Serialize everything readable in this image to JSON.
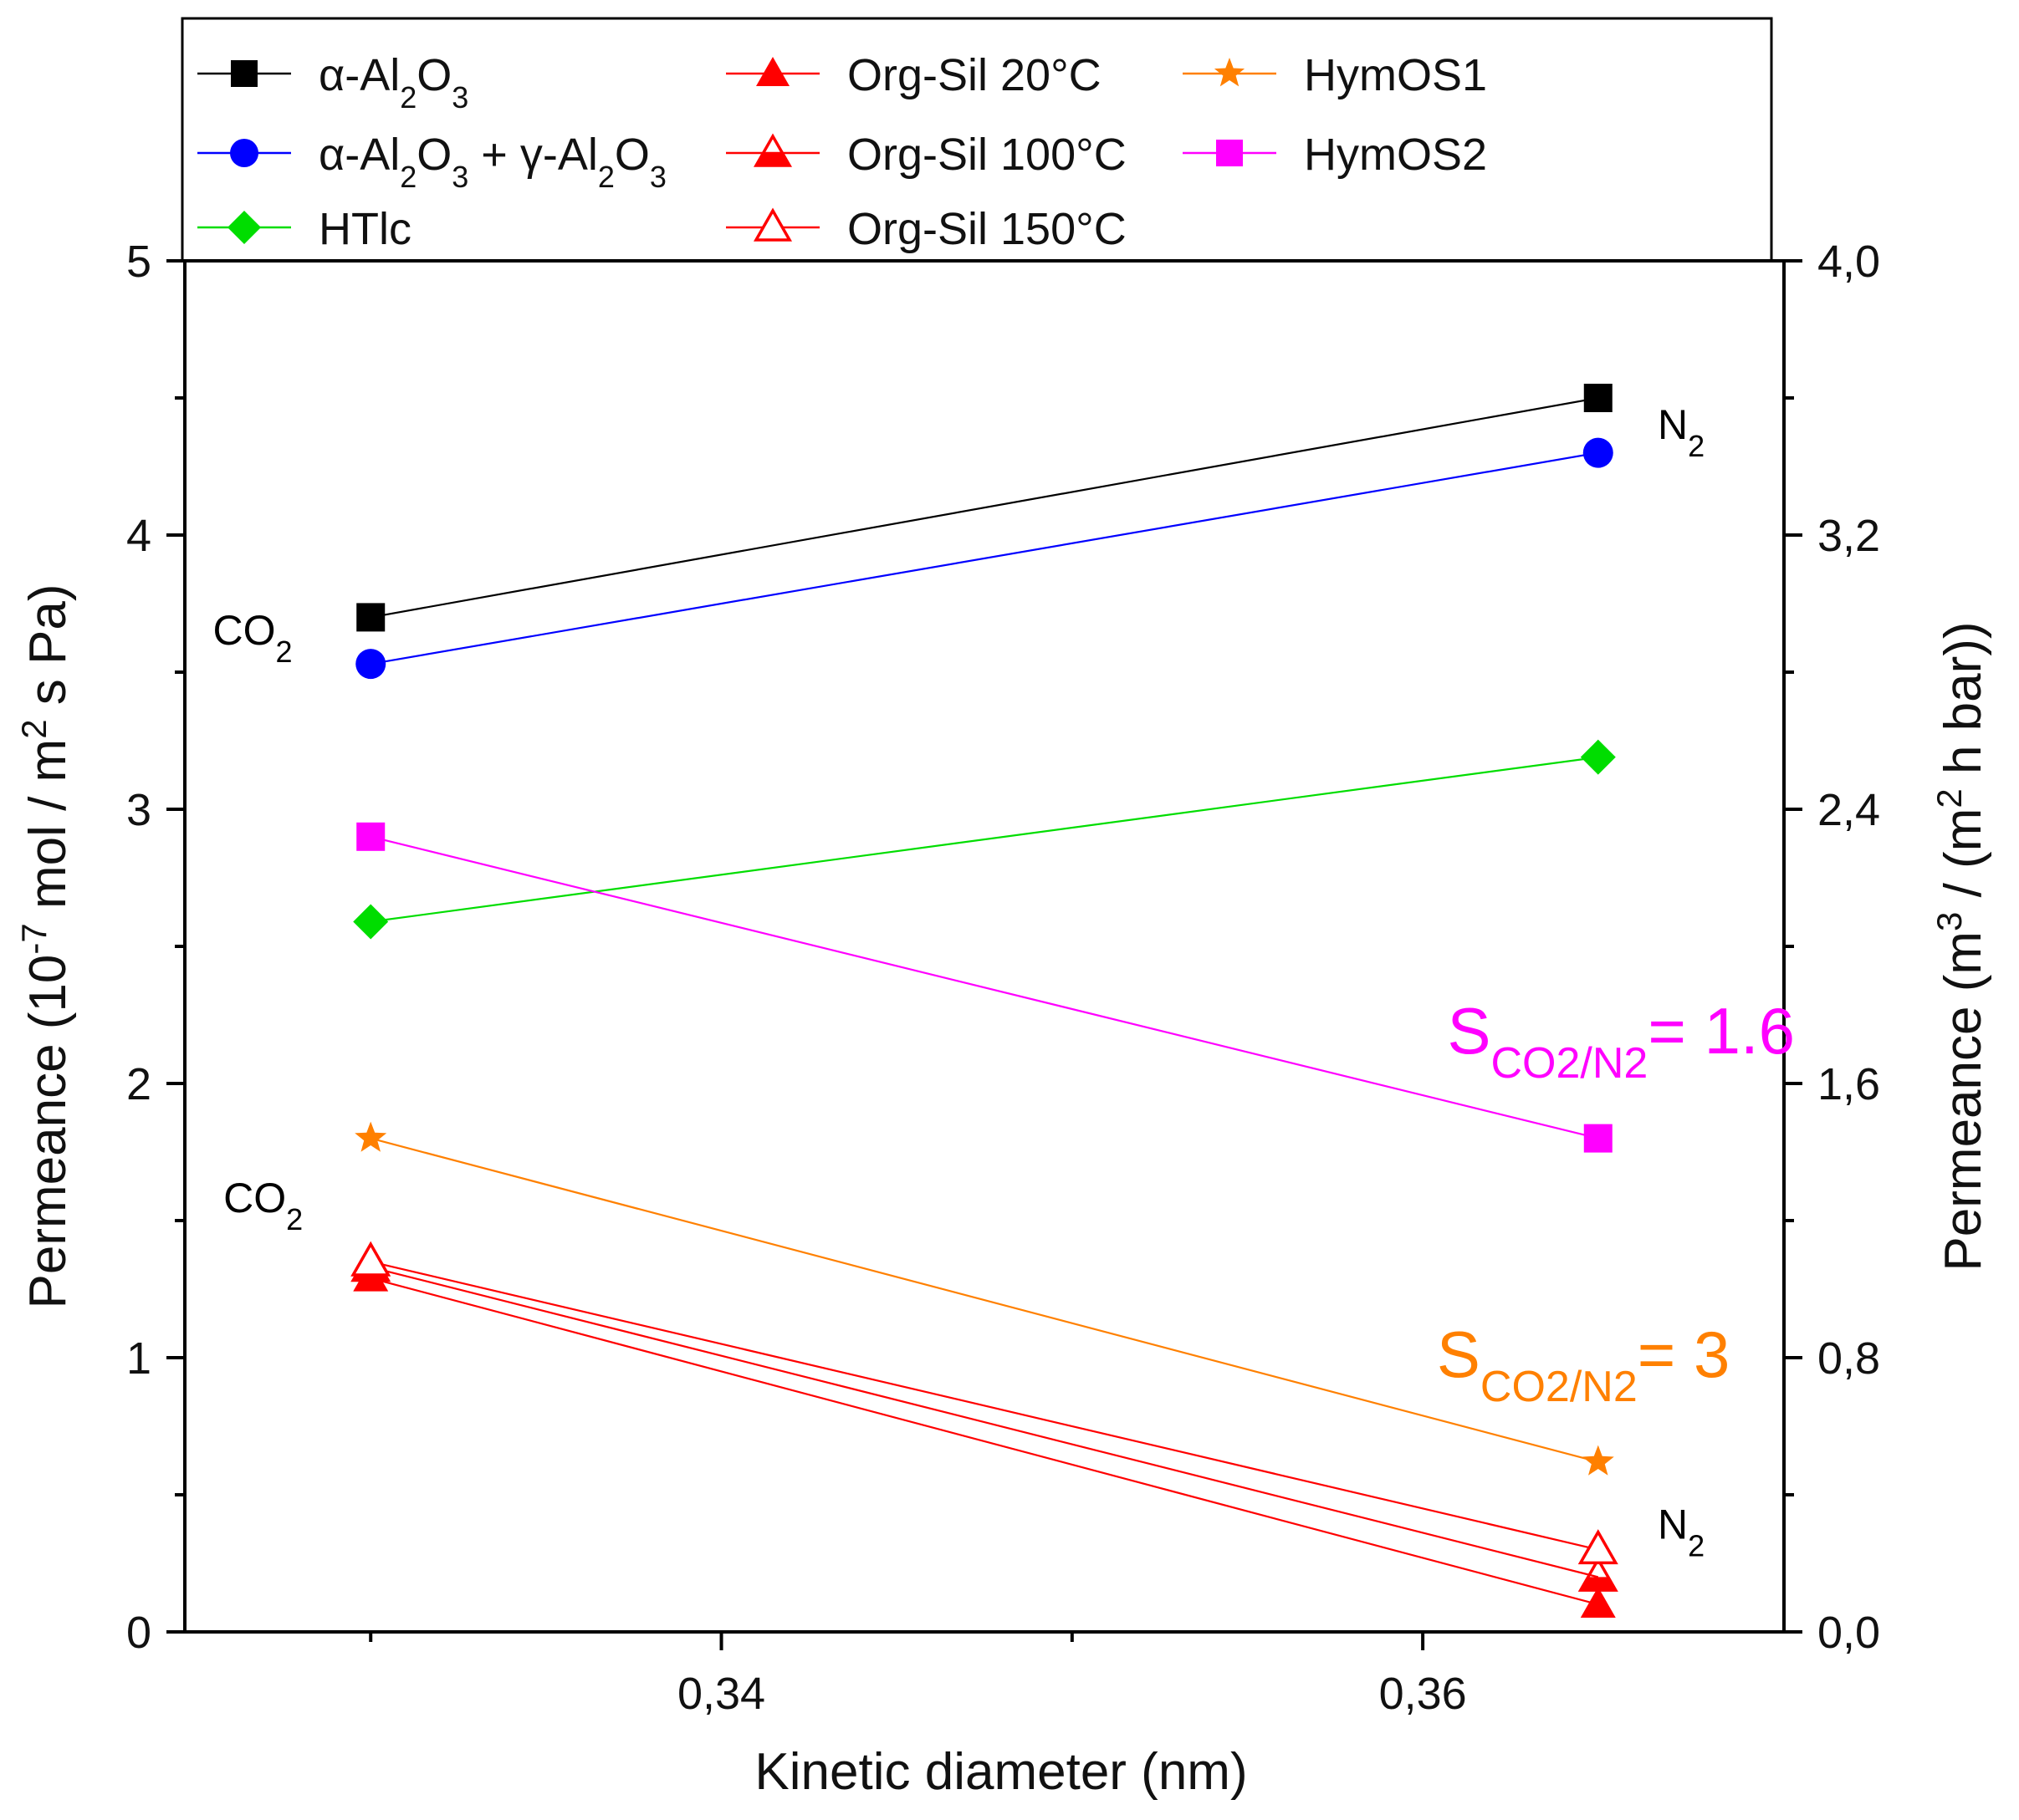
{
  "chart_data": {
    "type": "line",
    "x_axis": {
      "title": "Kinetic diameter (nm)",
      "range": [
        0.3247,
        0.3703
      ],
      "ticks": [
        0.34,
        0.36
      ],
      "tick_labels": [
        "0,34",
        "0,36"
      ]
    },
    "y_axis_left": {
      "title_parts": [
        "Permeance (10",
        "-7",
        " mol / m",
        "2",
        " s Pa)"
      ],
      "range": [
        0,
        5
      ],
      "ticks": [
        0,
        1,
        2,
        3,
        4,
        5
      ],
      "tick_labels": [
        "0",
        "1",
        "2",
        "3",
        "4",
        "5"
      ]
    },
    "y_axis_right": {
      "title_parts": [
        "Permeance (m",
        "3",
        " / (m",
        "2",
        " h bar))"
      ],
      "range": [
        0,
        4
      ],
      "ticks": [
        0,
        0.8,
        1.6,
        2.4,
        3.2,
        4.0
      ],
      "tick_labels": [
        "0,0",
        "0,8",
        "1,6",
        "2,4",
        "3,2",
        "4,0"
      ]
    },
    "x": [
      0.33,
      0.365
    ],
    "series": [
      {
        "name_parts": [
          "α-Al",
          "2",
          "O",
          "3"
        ],
        "color": "#000000",
        "marker": "square",
        "values": [
          3.7,
          4.5
        ]
      },
      {
        "name_parts": [
          "α-Al",
          "2",
          "O",
          "3",
          " + γ-Al",
          "2",
          "O",
          "3"
        ],
        "color": "#0000ff",
        "marker": "circle",
        "values": [
          3.53,
          4.3
        ]
      },
      {
        "name_parts": [
          "HTlc"
        ],
        "color": "#00dd00",
        "marker": "diamond",
        "values": [
          2.59,
          3.19
        ]
      },
      {
        "name_parts": [
          "Org-Sil 20°C"
        ],
        "color": "#ff0000",
        "marker": "triangle-filled",
        "values": [
          1.29,
          0.1
        ]
      },
      {
        "name_parts": [
          "Org-Sil 100°C"
        ],
        "color": "#ff0000",
        "marker": "triangle-half",
        "values": [
          1.33,
          0.2
        ]
      },
      {
        "name_parts": [
          "Org-Sil 150°C"
        ],
        "color": "#ff0000",
        "marker": "triangle-open",
        "values": [
          1.35,
          0.3
        ]
      },
      {
        "name_parts": [
          "HymOS1"
        ],
        "color": "#ff8000",
        "marker": "star",
        "values": [
          1.8,
          0.62
        ]
      },
      {
        "name_parts": [
          "HymOS2"
        ],
        "color": "#ff00ff",
        "marker": "square",
        "values": [
          2.9,
          1.8
        ]
      }
    ],
    "annotations": [
      {
        "id": "co2-upper",
        "main": "CO",
        "sub": "2",
        "x": 0.3255,
        "y": 3.6,
        "color": "#000000"
      },
      {
        "id": "n2-upper",
        "main": "N",
        "sub": "2",
        "x": 0.3667,
        "y": 4.35,
        "color": "#000000"
      },
      {
        "id": "co2-lower",
        "main": "CO",
        "sub": "2",
        "x": 0.3258,
        "y": 1.53,
        "color": "#000000"
      },
      {
        "id": "n2-lower",
        "main": "N",
        "sub": "2",
        "x": 0.3667,
        "y": 0.34,
        "color": "#000000"
      },
      {
        "id": "sel-hymos2",
        "main": "S",
        "sub": "CO2/N2",
        "tail": "= 1.6",
        "x": 0.3607,
        "y": 2.11,
        "color": "#ff00ff"
      },
      {
        "id": "sel-hymos1",
        "main": "S",
        "sub": "CO2/N2",
        "tail": "= 3",
        "x": 0.3604,
        "y": 0.93,
        "color": "#ff8000"
      }
    ]
  }
}
